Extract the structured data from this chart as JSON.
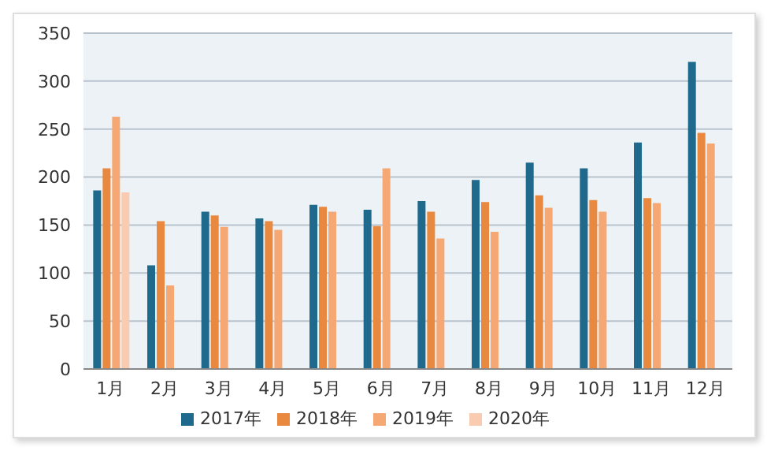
{
  "chart_data": {
    "type": "bar",
    "categories": [
      "1月",
      "2月",
      "3月",
      "4月",
      "5月",
      "6月",
      "7月",
      "8月",
      "9月",
      "10月",
      "11月",
      "12月"
    ],
    "series": [
      {
        "name": "2017年",
        "color": "#1f6a8c",
        "values": [
          186,
          108,
          164,
          157,
          171,
          166,
          175,
          197,
          215,
          209,
          236,
          320
        ]
      },
      {
        "name": "2018年",
        "color": "#e8893f",
        "values": [
          209,
          154,
          160,
          154,
          169,
          149,
          164,
          174,
          181,
          176,
          178,
          246
        ]
      },
      {
        "name": "2019年",
        "color": "#f6a874",
        "values": [
          263,
          87,
          148,
          145,
          164,
          209,
          136,
          143,
          168,
          164,
          173,
          235
        ]
      },
      {
        "name": "2020年",
        "color": "#f9cbb0",
        "values": [
          184,
          null,
          null,
          null,
          null,
          null,
          null,
          null,
          null,
          null,
          null,
          null
        ]
      }
    ],
    "ylim": [
      0,
      350
    ],
    "yticks": [
      0,
      50,
      100,
      150,
      200,
      250,
      300,
      350
    ],
    "grid": "y",
    "legend": "bottom"
  }
}
